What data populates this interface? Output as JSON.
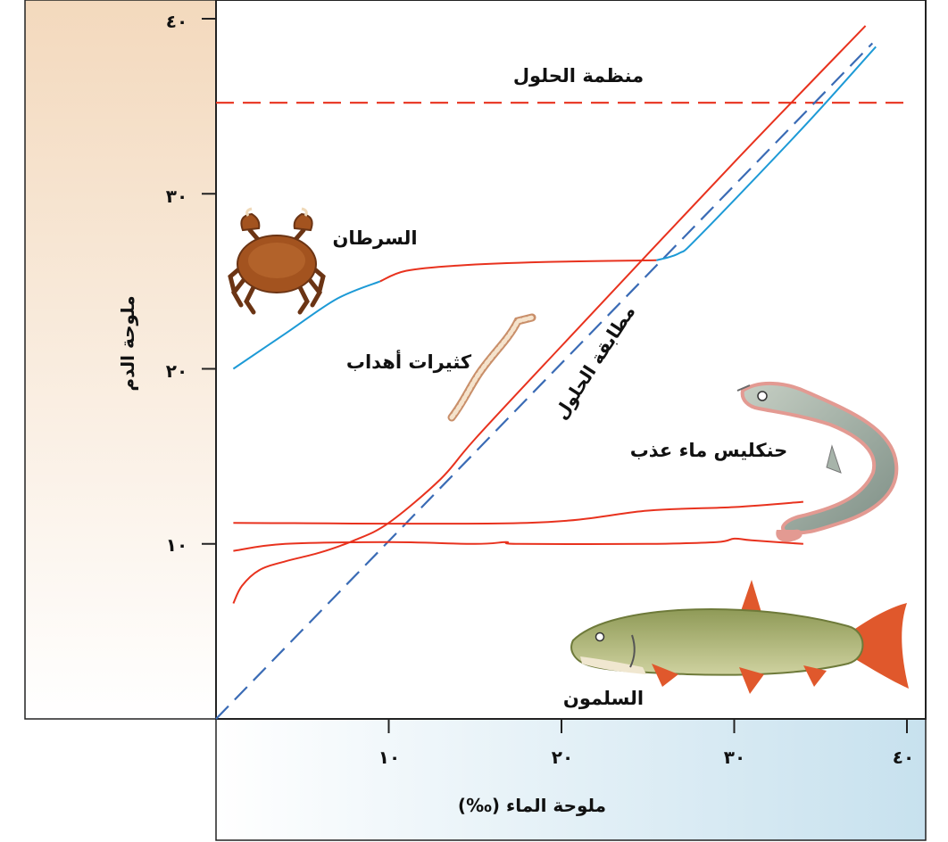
{
  "chart_data": {
    "type": "line",
    "xlabel": "ملوحة الماء (‰)",
    "ylabel": "ملوحة الدم",
    "xlim": [
      0,
      40
    ],
    "ylim": [
      0,
      40
    ],
    "x_ticks": [
      10,
      20,
      30,
      40
    ],
    "y_ticks": [
      10,
      20,
      30,
      40
    ],
    "x_tick_labels": [
      "١٠",
      "٢٠",
      "٣٠",
      "٤٠"
    ],
    "y_tick_labels": [
      "١٠",
      "٢٠",
      "٣٠",
      "٤٠"
    ],
    "grid": false,
    "colors": {
      "regulator": "#e8321e",
      "conformer_segment": "#1d9ad6",
      "isosmotic": "#3a6bb5",
      "y_panel": "#f3d9bd",
      "x_panel": "#c7e1ee"
    },
    "annotations": {
      "regulator_line": "منظمة الحلول",
      "isosmotic_line": "مطابقة الحلول",
      "crab": "السرطان",
      "worm": "كثيرات أهداب",
      "killifish": "حنكليس ماء عذب",
      "salmon": "السلمون"
    },
    "series": [
      {
        "key": "regulator_ref",
        "style": "dashed",
        "color": "#e8321e",
        "points": [
          [
            0,
            35.2
          ],
          [
            40,
            35.2
          ]
        ]
      },
      {
        "key": "isosmotic",
        "style": "dashed",
        "color": "#3a6bb5",
        "points": [
          [
            0,
            0
          ],
          [
            38,
            38.6
          ]
        ]
      },
      {
        "key": "worm_red",
        "style": "solid",
        "color": "#e8321e",
        "points": [
          [
            1,
            6.6
          ],
          [
            1.5,
            7.6
          ],
          [
            2.5,
            8.5
          ],
          [
            4,
            9.0
          ],
          [
            6,
            9.5
          ],
          [
            8,
            10.2
          ],
          [
            10,
            11.2
          ],
          [
            13,
            13.7
          ],
          [
            15,
            16.0
          ],
          [
            20,
            21.3
          ],
          [
            30,
            31.8
          ],
          [
            37.6,
            39.6
          ]
        ]
      },
      {
        "key": "crab_blue_low",
        "style": "solid",
        "color": "#1d9ad6",
        "points": [
          [
            1,
            20.0
          ],
          [
            4,
            22.0
          ],
          [
            7,
            24.0
          ],
          [
            9.5,
            25.0
          ]
        ]
      },
      {
        "key": "crab_red_mid",
        "style": "solid",
        "color": "#e8321e",
        "points": [
          [
            9.5,
            25.0
          ],
          [
            11,
            25.6
          ],
          [
            14,
            25.9
          ],
          [
            19,
            26.1
          ],
          [
            25.5,
            26.2
          ]
        ]
      },
      {
        "key": "crab_blue_high",
        "style": "solid",
        "color": "#1d9ad6",
        "points": [
          [
            25.5,
            26.2
          ],
          [
            26.8,
            26.6
          ],
          [
            28,
            27.6
          ],
          [
            34,
            33.8
          ],
          [
            38.2,
            38.4
          ]
        ]
      },
      {
        "key": "killifish",
        "style": "solid",
        "color": "#e8321e",
        "points": [
          [
            1,
            11.2
          ],
          [
            18,
            11.2
          ],
          [
            25,
            11.9
          ],
          [
            30,
            12.1
          ],
          [
            34,
            12.4
          ]
        ]
      },
      {
        "key": "salmon",
        "style": "solid",
        "color": "#e8321e",
        "points": [
          [
            1,
            9.6
          ],
          [
            4,
            10.0
          ],
          [
            10,
            10.1
          ],
          [
            15,
            10.0
          ],
          [
            16.8,
            10.1
          ],
          [
            17.5,
            10.0
          ],
          [
            25,
            10.0
          ],
          [
            29,
            10.1
          ],
          [
            30,
            10.3
          ],
          [
            31,
            10.2
          ],
          [
            34,
            10.0
          ]
        ]
      }
    ]
  }
}
